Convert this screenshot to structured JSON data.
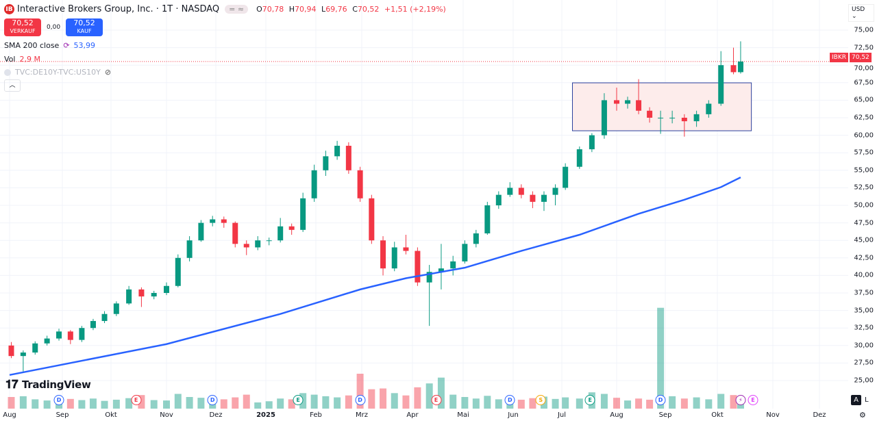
{
  "header": {
    "title": "Interactive Brokers Group, Inc. · 1T · NASDAQ",
    "logo_text": "IB",
    "pill": "= ≈",
    "ohlc": {
      "o_label": "O",
      "o": "70,78",
      "h_label": "H",
      "h": "70,94",
      "l_label": "L",
      "l": "69,76",
      "c_label": "C",
      "c": "70,52",
      "change": "+1,51 (+2,19%)"
    }
  },
  "trade": {
    "sell_price": "70,52",
    "sell_label": "VERKAUF",
    "spread": "0,00",
    "buy_price": "70,52",
    "buy_label": "KAUF"
  },
  "indicators": {
    "sma_label": "SMA 200 close",
    "sma_value": "53,99",
    "vol_label": "Vol",
    "vol_value": "2,9 M",
    "spread_symbol": "TVC:DE10Y-TVC:US10Y"
  },
  "axis": {
    "currency": "USD",
    "symbol_tag": "IBKR",
    "last_price_tag": "70,52",
    "auto_label": "A",
    "log_label": "L"
  },
  "brand": "TradingView",
  "colors": {
    "up": "#089981",
    "down": "#f23645",
    "sma": "#2962ff",
    "rect_border": "#2a3f9d",
    "rect_fill": "#fdeceb",
    "last_price": "#f23645"
  },
  "chart_data": {
    "type": "candlestick",
    "interval_shown": "1T",
    "ylim": [
      25,
      75
    ],
    "yticks": [
      "25,00",
      "27,50",
      "30,00",
      "32,50",
      "35,00",
      "37,50",
      "40,00",
      "42,50",
      "45,00",
      "47,50",
      "50,00",
      "52,50",
      "55,00",
      "57,50",
      "60,00",
      "62,50",
      "65,00",
      "67,50",
      "70,00",
      "72,50",
      "75,00"
    ],
    "yvalues": [
      25,
      27.5,
      30,
      32.5,
      35,
      37.5,
      40,
      42.5,
      45,
      47.5,
      50,
      52.5,
      55,
      57.5,
      60,
      62.5,
      65,
      67.5,
      70,
      72.5,
      75
    ],
    "xticks": [
      {
        "label": "Aug",
        "date": "2024-08-01"
      },
      {
        "label": "Sep",
        "date": "2024-09-01"
      },
      {
        "label": "Okt",
        "date": "2024-10-01"
      },
      {
        "label": "Nov",
        "date": "2024-11-01"
      },
      {
        "label": "Dez",
        "date": "2024-12-01"
      },
      {
        "label": "2025",
        "date": "2025-01-01"
      },
      {
        "label": "Feb",
        "date": "2025-02-01"
      },
      {
        "label": "Mrz",
        "date": "2025-03-01"
      },
      {
        "label": "Apr",
        "date": "2025-04-01"
      },
      {
        "label": "Mai",
        "date": "2025-05-01"
      },
      {
        "label": "Jun",
        "date": "2025-06-01"
      },
      {
        "label": "Jul",
        "date": "2025-07-01"
      },
      {
        "label": "Aug",
        "date": "2025-08-01"
      },
      {
        "label": "Sep",
        "date": "2025-09-01"
      },
      {
        "label": "Okt",
        "date": "2025-10-01"
      },
      {
        "label": "Nov",
        "date": "2025-11-01"
      },
      {
        "label": "Dez",
        "date": "2025-12-01"
      }
    ],
    "last_price": 70.52,
    "candles_columns": [
      "date",
      "open",
      "high",
      "low",
      "close",
      "volume_m"
    ],
    "candles": [
      [
        "2024-08-02",
        30.0,
        30.5,
        28.2,
        28.5,
        3.0
      ],
      [
        "2024-08-09",
        28.5,
        29.3,
        26.3,
        29.0,
        3.2
      ],
      [
        "2024-08-16",
        29.0,
        30.6,
        28.7,
        30.3,
        2.4
      ],
      [
        "2024-08-23",
        30.3,
        31.4,
        30.0,
        31.0,
        2.1
      ],
      [
        "2024-08-30",
        31.0,
        32.4,
        30.7,
        32.0,
        2.3
      ],
      [
        "2024-09-06",
        32.0,
        32.2,
        30.2,
        30.8,
        2.5
      ],
      [
        "2024-09-13",
        30.8,
        32.8,
        30.5,
        32.5,
        2.2
      ],
      [
        "2024-09-20",
        32.5,
        33.8,
        32.2,
        33.5,
        2.6
      ],
      [
        "2024-09-27",
        33.5,
        34.9,
        33.2,
        34.5,
        2.0
      ],
      [
        "2024-10-04",
        34.5,
        36.3,
        34.2,
        36.0,
        2.3
      ],
      [
        "2024-10-11",
        36.0,
        38.5,
        35.8,
        38.0,
        2.7
      ],
      [
        "2024-10-18",
        38.0,
        38.3,
        35.5,
        37.0,
        3.5
      ],
      [
        "2024-10-25",
        37.0,
        37.8,
        36.6,
        37.5,
        2.2
      ],
      [
        "2024-11-01",
        37.5,
        39.0,
        37.2,
        38.5,
        2.1
      ],
      [
        "2024-11-08",
        38.5,
        43.0,
        38.3,
        42.5,
        3.8
      ],
      [
        "2024-11-15",
        42.5,
        45.6,
        42.0,
        45.0,
        3.0
      ],
      [
        "2024-11-22",
        45.0,
        47.9,
        44.8,
        47.5,
        2.8
      ],
      [
        "2024-11-29",
        47.5,
        48.5,
        47.0,
        48.0,
        2.0
      ],
      [
        "2024-12-06",
        48.0,
        48.4,
        46.8,
        47.5,
        2.4
      ],
      [
        "2024-12-13",
        47.5,
        47.7,
        44.0,
        44.5,
        2.9
      ],
      [
        "2024-12-20",
        44.5,
        45.0,
        42.9,
        44.0,
        3.6
      ],
      [
        "2024-12-27",
        44.0,
        45.6,
        43.6,
        45.0,
        1.6
      ],
      [
        "2025-01-03",
        45.0,
        45.4,
        44.3,
        45.0,
        1.9
      ],
      [
        "2025-01-10",
        45.0,
        48.2,
        44.7,
        47.0,
        2.6
      ],
      [
        "2025-01-17",
        47.0,
        47.4,
        45.8,
        46.5,
        2.4
      ],
      [
        "2025-01-24",
        46.5,
        51.8,
        46.2,
        51.0,
        4.0
      ],
      [
        "2025-01-31",
        51.0,
        55.8,
        50.5,
        55.0,
        3.6
      ],
      [
        "2025-02-07",
        55.0,
        57.8,
        54.2,
        57.0,
        3.2
      ],
      [
        "2025-02-14",
        57.0,
        59.2,
        56.5,
        58.5,
        2.9
      ],
      [
        "2025-02-21",
        58.5,
        59.0,
        54.5,
        55.0,
        3.4
      ],
      [
        "2025-02-28",
        55.0,
        55.5,
        50.5,
        51.0,
        9.0
      ],
      [
        "2025-03-07",
        51.0,
        51.5,
        44.5,
        45.0,
        5.0
      ],
      [
        "2025-03-14",
        45.0,
        45.6,
        40.0,
        41.0,
        5.2
      ],
      [
        "2025-03-21",
        41.0,
        44.8,
        40.6,
        44.0,
        4.0
      ],
      [
        "2025-03-28",
        44.0,
        45.8,
        43.0,
        43.5,
        3.4
      ],
      [
        "2025-04-04",
        43.5,
        44.0,
        38.5,
        39.0,
        5.5
      ],
      [
        "2025-04-11",
        39.0,
        41.5,
        32.8,
        40.5,
        6.5
      ],
      [
        "2025-04-18",
        40.5,
        44.5,
        38.0,
        41.0,
        8.0
      ],
      [
        "2025-04-25",
        41.0,
        42.8,
        40.0,
        42.0,
        3.6
      ],
      [
        "2025-05-02",
        42.0,
        45.0,
        41.7,
        44.5,
        3.0
      ],
      [
        "2025-05-09",
        44.5,
        46.5,
        44.0,
        46.0,
        2.6
      ],
      [
        "2025-05-16",
        46.0,
        50.5,
        45.8,
        50.0,
        3.3
      ],
      [
        "2025-05-23",
        50.0,
        52.0,
        49.5,
        51.5,
        2.4
      ],
      [
        "2025-05-30",
        51.5,
        53.3,
        51.2,
        52.5,
        2.8
      ],
      [
        "2025-06-06",
        52.5,
        53.0,
        51.0,
        51.5,
        2.3
      ],
      [
        "2025-06-13",
        51.5,
        52.0,
        49.6,
        50.5,
        2.7
      ],
      [
        "2025-06-20",
        50.5,
        52.0,
        49.2,
        51.5,
        3.1
      ],
      [
        "2025-06-27",
        51.5,
        53.0,
        50.0,
        52.5,
        2.5
      ],
      [
        "2025-07-03",
        52.5,
        56.0,
        52.2,
        55.5,
        2.9
      ],
      [
        "2025-07-11",
        55.5,
        58.4,
        55.2,
        58.0,
        2.6
      ],
      [
        "2025-07-18",
        58.0,
        60.3,
        57.6,
        60.0,
        4.2
      ],
      [
        "2025-07-25",
        60.0,
        66.0,
        59.5,
        65.0,
        3.8
      ],
      [
        "2025-08-01",
        65.0,
        66.8,
        63.5,
        64.5,
        2.8
      ],
      [
        "2025-08-08",
        64.5,
        65.5,
        63.8,
        65.0,
        2.1
      ],
      [
        "2025-08-15",
        65.0,
        68.0,
        63.0,
        63.5,
        2.6
      ],
      [
        "2025-08-22",
        63.5,
        64.0,
        61.8,
        62.5,
        2.3
      ],
      [
        "2025-08-29",
        62.5,
        63.5,
        60.2,
        62.5,
        26.0
      ],
      [
        "2025-09-05",
        62.5,
        63.5,
        61.7,
        62.5,
        3.2
      ],
      [
        "2025-09-12",
        62.5,
        63.0,
        59.8,
        62.0,
        2.6
      ],
      [
        "2025-09-19",
        62.0,
        63.5,
        61.2,
        63.0,
        2.9
      ],
      [
        "2025-09-26",
        63.0,
        65.0,
        62.5,
        64.5,
        2.4
      ],
      [
        "2025-10-03",
        64.5,
        72.0,
        64.2,
        70.0,
        3.8
      ],
      [
        "2025-10-10",
        70.0,
        72.5,
        68.7,
        69.0,
        3.5
      ],
      [
        "2025-10-14",
        69.0,
        73.4,
        68.8,
        70.52,
        2.9
      ]
    ],
    "sma200": [
      [
        "2024-08-01",
        25.8
      ],
      [
        "2024-11-01",
        30.2
      ],
      [
        "2025-01-10",
        34.5
      ],
      [
        "2025-02-28",
        38.0
      ],
      [
        "2025-03-28",
        39.6
      ],
      [
        "2025-05-02",
        41.1
      ],
      [
        "2025-06-06",
        43.5
      ],
      [
        "2025-07-11",
        45.8
      ],
      [
        "2025-08-15",
        48.8
      ],
      [
        "2025-09-12",
        50.8
      ],
      [
        "2025-10-03",
        52.6
      ],
      [
        "2025-10-14",
        53.99
      ]
    ],
    "volume_max_m": 30,
    "rectangle": {
      "start": "2025-07-07",
      "end": "2025-10-20",
      "top": 67.48,
      "bottom": 60.64
    },
    "events": [
      {
        "type": "D",
        "date": "2024-08-30",
        "color": "#2962ff"
      },
      {
        "type": "E",
        "date": "2024-10-15",
        "color": "#f23645"
      },
      {
        "type": "D",
        "date": "2024-11-29",
        "color": "#2962ff"
      },
      {
        "type": "E",
        "date": "2025-01-21",
        "color": "#089981"
      },
      {
        "type": "D",
        "date": "2025-02-28",
        "color": "#2962ff"
      },
      {
        "type": "E",
        "date": "2025-04-15",
        "color": "#f23645"
      },
      {
        "type": "D",
        "date": "2025-05-30",
        "color": "#2962ff"
      },
      {
        "type": "S",
        "date": "2025-06-18",
        "color": "#f7a600"
      },
      {
        "type": "E",
        "date": "2025-07-17",
        "color": "#089981"
      },
      {
        "type": "D",
        "date": "2025-08-29",
        "color": "#2962ff"
      },
      {
        "type": "⚡",
        "date": "2025-10-14",
        "color": "#9c27b0"
      },
      {
        "type": "E",
        "date": "2025-10-17",
        "color": "#e040fb"
      }
    ]
  }
}
